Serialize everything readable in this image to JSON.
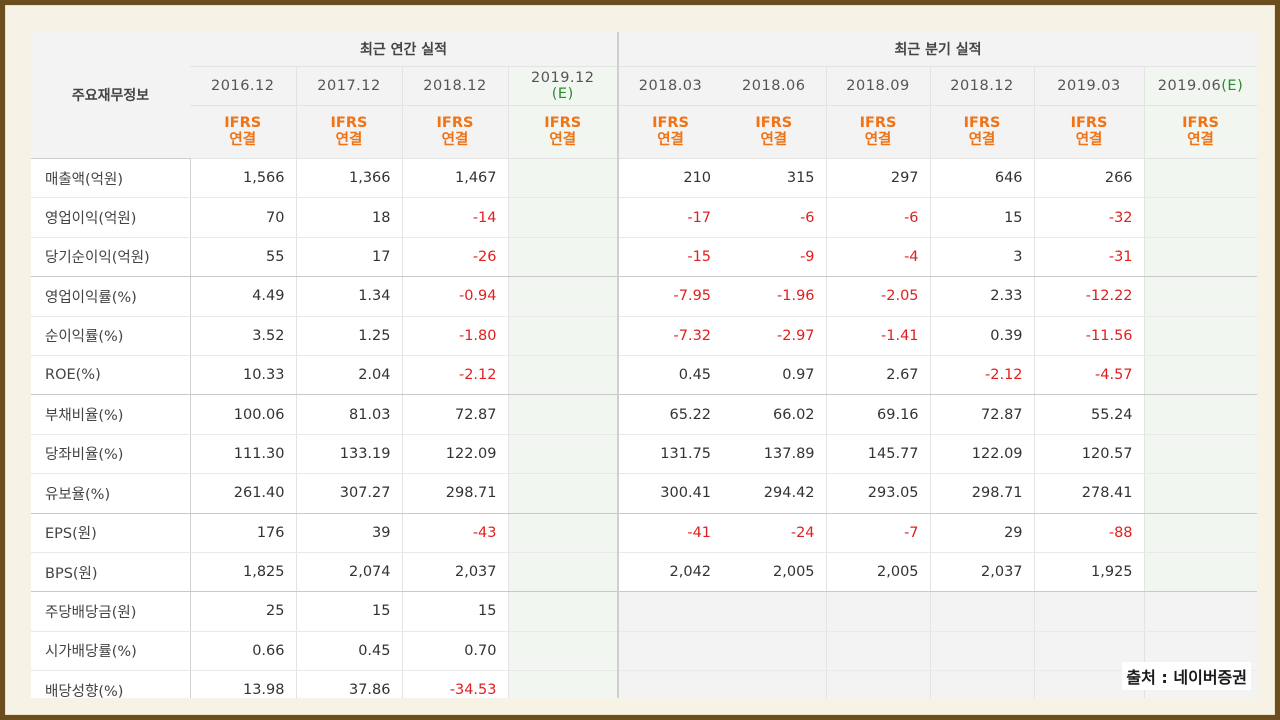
{
  "header": {
    "row_title": "주요재무정보",
    "annual_title": "최근 연간 실적",
    "quarter_title": "최근 분기 실적",
    "ifrs_line1": "IFRS",
    "ifrs_line2": "연결",
    "annual_periods": [
      {
        "main": "2016.12",
        "est": ""
      },
      {
        "main": "2017.12",
        "est": ""
      },
      {
        "main": "2018.12",
        "est": ""
      },
      {
        "main": "2019.12",
        "est": "(E)"
      }
    ],
    "quarter_periods": [
      {
        "main": "2018.03",
        "est": ""
      },
      {
        "main": "2018.06",
        "est": ""
      },
      {
        "main": "2018.09",
        "est": ""
      },
      {
        "main": "2018.12",
        "est": ""
      },
      {
        "main": "2019.03",
        "est": ""
      },
      {
        "main": "2019.06",
        "est": "(E)"
      }
    ]
  },
  "rows": [
    {
      "label": "매출액(억원)",
      "a": [
        "1,566",
        "1,366",
        "1,467",
        ""
      ],
      "q": [
        "210",
        "315",
        "297",
        "646",
        "266",
        ""
      ]
    },
    {
      "label": "영업이익(억원)",
      "a": [
        "70",
        "18",
        "-14",
        ""
      ],
      "q": [
        "-17",
        "-6",
        "-6",
        "15",
        "-32",
        ""
      ]
    },
    {
      "label": "당기순이익(억원)",
      "a": [
        "55",
        "17",
        "-26",
        ""
      ],
      "q": [
        "-15",
        "-9",
        "-4",
        "3",
        "-31",
        ""
      ]
    },
    {
      "label": "영업이익률(%)",
      "a": [
        "4.49",
        "1.34",
        "-0.94",
        ""
      ],
      "q": [
        "-7.95",
        "-1.96",
        "-2.05",
        "2.33",
        "-12.22",
        ""
      ]
    },
    {
      "label": "순이익률(%)",
      "a": [
        "3.52",
        "1.25",
        "-1.80",
        ""
      ],
      "q": [
        "-7.32",
        "-2.97",
        "-1.41",
        "0.39",
        "-11.56",
        ""
      ]
    },
    {
      "label": "ROE(%)",
      "a": [
        "10.33",
        "2.04",
        "-2.12",
        ""
      ],
      "q": [
        "0.45",
        "0.97",
        "2.67",
        "-2.12",
        "-4.57",
        ""
      ]
    },
    {
      "label": "부채비율(%)",
      "a": [
        "100.06",
        "81.03",
        "72.87",
        ""
      ],
      "q": [
        "65.22",
        "66.02",
        "69.16",
        "72.87",
        "55.24",
        ""
      ]
    },
    {
      "label": "당좌비율(%)",
      "a": [
        "111.30",
        "133.19",
        "122.09",
        ""
      ],
      "q": [
        "131.75",
        "137.89",
        "145.77",
        "122.09",
        "120.57",
        ""
      ]
    },
    {
      "label": "유보율(%)",
      "a": [
        "261.40",
        "307.27",
        "298.71",
        ""
      ],
      "q": [
        "300.41",
        "294.42",
        "293.05",
        "298.71",
        "278.41",
        ""
      ]
    },
    {
      "label": "EPS(원)",
      "a": [
        "176",
        "39",
        "-43",
        ""
      ],
      "q": [
        "-41",
        "-24",
        "-7",
        "29",
        "-88",
        ""
      ]
    },
    {
      "label": "BPS(원)",
      "a": [
        "1,825",
        "2,074",
        "2,037",
        ""
      ],
      "q": [
        "2,042",
        "2,005",
        "2,005",
        "2,037",
        "1,925",
        ""
      ]
    },
    {
      "label": "주당배당금(원)",
      "a": [
        "25",
        "15",
        "15",
        ""
      ],
      "q": null
    },
    {
      "label": "시가배당률(%)",
      "a": [
        "0.66",
        "0.45",
        "0.70",
        ""
      ],
      "q": null
    },
    {
      "label": "배당성향(%)",
      "a": [
        "13.98",
        "37.86",
        "-34.53",
        ""
      ],
      "q": null
    }
  ],
  "group_end_rows": [
    2,
    5,
    8,
    10
  ],
  "source": "출처 : 네이버증권",
  "colors": {
    "negative": "#e02020",
    "ifrs": "#f07316",
    "estimate": "#2e8a2e",
    "frame": "#6b4d1e"
  }
}
